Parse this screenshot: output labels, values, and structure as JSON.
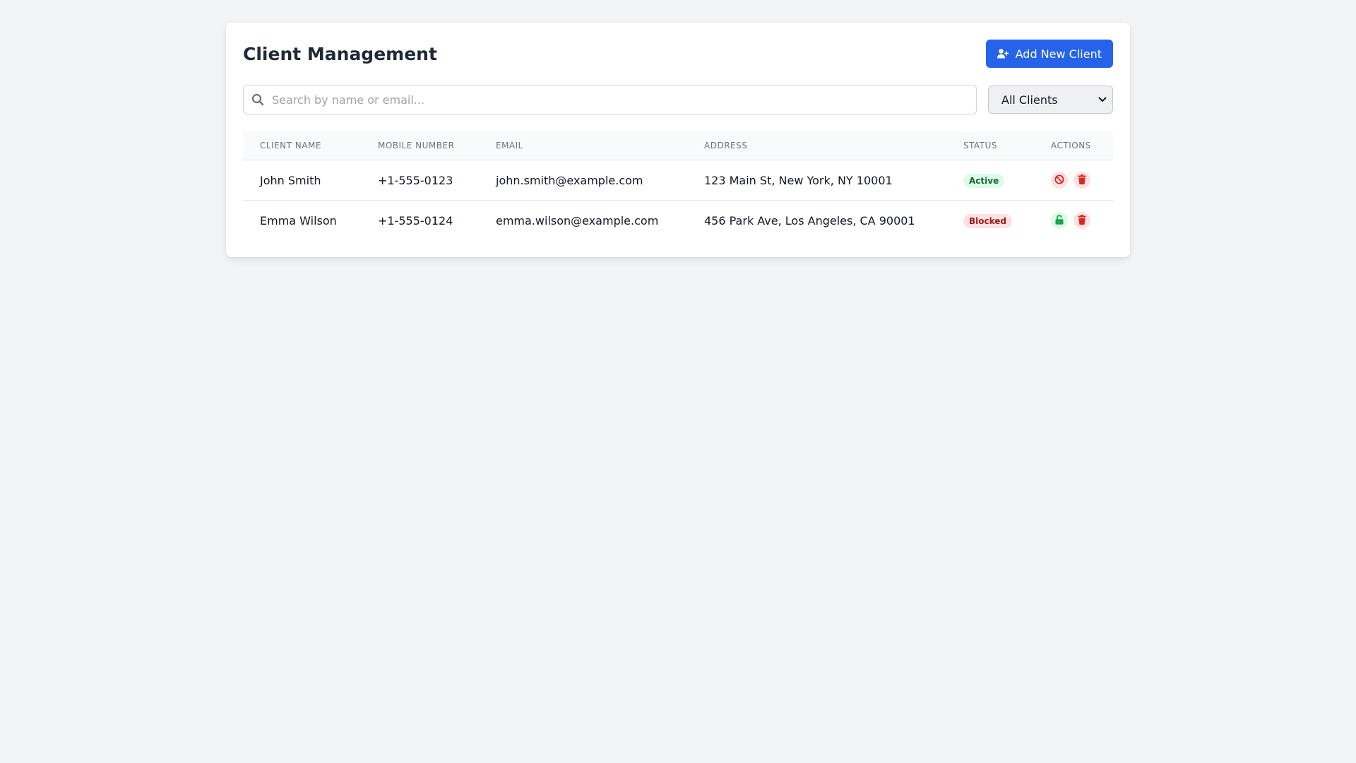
{
  "header": {
    "title": "Client Management",
    "add_button_label": "Add New Client"
  },
  "search": {
    "placeholder": "Search by name or email...",
    "value": ""
  },
  "filter": {
    "selected": "All Clients"
  },
  "table": {
    "columns": [
      "CLIENT NAME",
      "MOBILE NUMBER",
      "EMAIL",
      "ADDRESS",
      "STATUS",
      "ACTIONS"
    ],
    "rows": [
      {
        "name": "John Smith",
        "mobile": "+1-555-0123",
        "email": "john.smith@example.com",
        "address": "123 Main St, New York, NY 10001",
        "status": "Active",
        "actions": [
          "block-icon",
          "trash-icon"
        ]
      },
      {
        "name": "Emma Wilson",
        "mobile": "+1-555-0124",
        "email": "emma.wilson@example.com",
        "address": "456 Park Ave, Los Angeles, CA 90001",
        "status": "Blocked",
        "actions": [
          "unlock-icon",
          "trash-icon"
        ]
      }
    ]
  },
  "colors": {
    "primary": "#2563eb",
    "active_bg": "#dcfce7",
    "active_text": "#166534",
    "blocked_bg": "#fee2e2",
    "blocked_text": "#991b1b",
    "danger": "#dc2626",
    "success": "#16a34a"
  }
}
